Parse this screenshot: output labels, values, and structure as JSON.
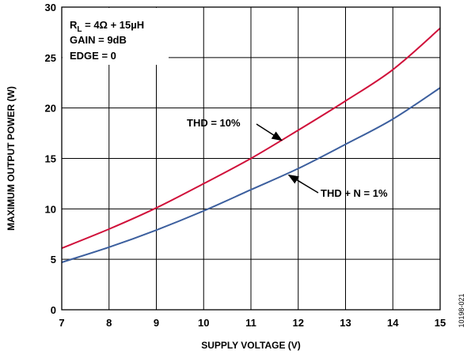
{
  "chart_data": {
    "type": "line",
    "xlabel": "SUPPLY VOLTAGE (V)",
    "ylabel": "MAXIMUM OUTPUT POWER (W)",
    "xlim": [
      7,
      15
    ],
    "ylim": [
      0,
      30
    ],
    "x_ticks": [
      "7",
      "8",
      "9",
      "10",
      "11",
      "12",
      "13",
      "14",
      "15"
    ],
    "y_ticks": [
      "0",
      "5",
      "10",
      "15",
      "20",
      "25",
      "30"
    ],
    "grid": true,
    "conditions": {
      "line1_main": "R",
      "line1_sub": "L",
      "line1_rest": " = 4Ω + 15µH",
      "line2": "GAIN = 9dB",
      "line3": "EDGE = 0"
    },
    "series": [
      {
        "name": "THD = 10%",
        "color": "#d0103a",
        "x": [
          7,
          8,
          9,
          10,
          11,
          12,
          13,
          14,
          15
        ],
        "y": [
          6.1,
          8.0,
          10.1,
          12.5,
          15.0,
          17.8,
          20.7,
          23.8,
          27.9
        ]
      },
      {
        "name": "THD + N = 1%",
        "color": "#3c5f9e",
        "x": [
          7,
          8,
          9,
          10,
          11,
          12,
          13,
          14,
          15
        ],
        "y": [
          4.7,
          6.2,
          7.9,
          9.8,
          11.9,
          14.0,
          16.4,
          18.9,
          22.0
        ]
      }
    ],
    "annotations": [
      "THD = 10%",
      "THD + N = 1%"
    ]
  },
  "figure_id": "10198-021"
}
